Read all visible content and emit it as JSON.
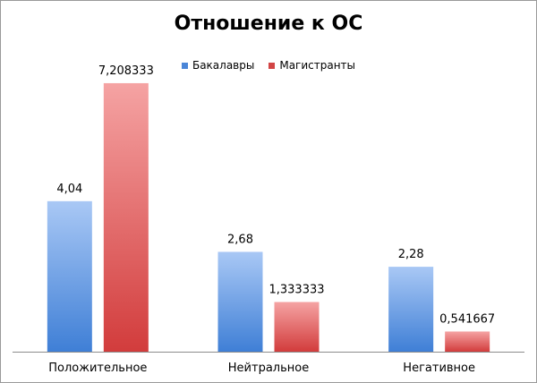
{
  "chart_data": {
    "type": "bar",
    "title": "Отношение к ОС",
    "categories": [
      "Положительное",
      "Нейтральное",
      "Негативное"
    ],
    "series": [
      {
        "name": "Бакалавры",
        "values": [
          4.04,
          2.68,
          2.28
        ],
        "labels": [
          "4,04",
          "2,68",
          "2,28"
        ],
        "color_top": "#a9c8f5",
        "color_bottom": "#3f7fd6",
        "legend_color": "#4a86d8"
      },
      {
        "name": "Магистранты",
        "values": [
          7.208333,
          1.333333,
          0.541667
        ],
        "labels": [
          "7,208333",
          "1,333333",
          "0,541667"
        ],
        "color_top": "#f5a3a3",
        "color_bottom": "#d23c3c",
        "legend_color": "#d24545"
      }
    ],
    "xlabel": "",
    "ylabel": "",
    "ylim": [
      0,
      8
    ],
    "grid": false,
    "legend_position": "top"
  }
}
